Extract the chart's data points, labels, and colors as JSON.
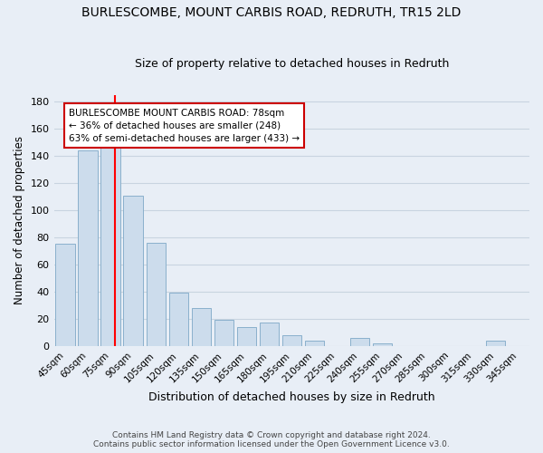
{
  "title": "BURLESCOMBE, MOUNT CARBIS ROAD, REDRUTH, TR15 2LD",
  "subtitle": "Size of property relative to detached houses in Redruth",
  "xlabel": "Distribution of detached houses by size in Redruth",
  "ylabel": "Number of detached properties",
  "footer_line1": "Contains HM Land Registry data © Crown copyright and database right 2024.",
  "footer_line2": "Contains public sector information licensed under the Open Government Licence v3.0.",
  "bar_labels": [
    "45sqm",
    "60sqm",
    "75sqm",
    "90sqm",
    "105sqm",
    "120sqm",
    "135sqm",
    "150sqm",
    "165sqm",
    "180sqm",
    "195sqm",
    "210sqm",
    "225sqm",
    "240sqm",
    "255sqm",
    "270sqm",
    "285sqm",
    "300sqm",
    "315sqm",
    "330sqm",
    "345sqm"
  ],
  "bar_values": [
    75,
    144,
    147,
    111,
    76,
    39,
    28,
    19,
    14,
    17,
    8,
    4,
    0,
    6,
    2,
    0,
    0,
    0,
    0,
    4,
    0
  ],
  "bar_color": "#ccdcec",
  "bar_edge_color": "#8ab0cc",
  "grid_color": "#c8d4e0",
  "background_color": "#e8eef6",
  "ref_line_color": "red",
  "ref_line_index": 2,
  "annotation_text_line1": "BURLESCOMBE MOUNT CARBIS ROAD: 78sqm",
  "annotation_text_line2": "← 36% of detached houses are smaller (248)",
  "annotation_text_line3": "63% of semi-detached houses are larger (433) →",
  "ylim": [
    0,
    185
  ],
  "yticks": [
    0,
    20,
    40,
    60,
    80,
    100,
    120,
    140,
    160,
    180
  ]
}
